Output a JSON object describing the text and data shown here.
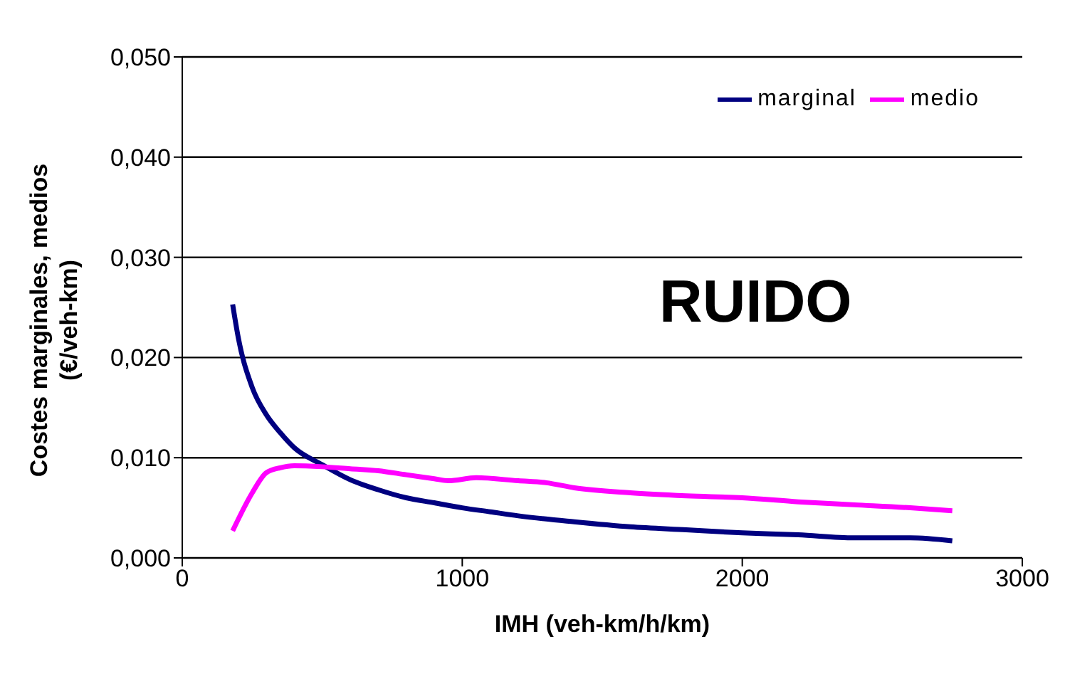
{
  "chart_data": {
    "type": "line",
    "xlabel": "IMH (veh-km/h/km)",
    "ylabel": "Costes marginales, medios\n(€/veh-km)",
    "annotations": [
      "RUIDO"
    ],
    "xlim": [
      0,
      3000
    ],
    "xticks": [
      0,
      1000,
      2000,
      3000
    ],
    "ylim": [
      0,
      0.05
    ],
    "yticks": [
      {
        "value": 0,
        "label": "0,000"
      },
      {
        "value": 0.01,
        "label": "0,010"
      },
      {
        "value": 0.02,
        "label": "0,020"
      },
      {
        "value": 0.03,
        "label": "0,030"
      },
      {
        "value": 0.04,
        "label": "0,040"
      },
      {
        "value": 0.05,
        "label": "0,050"
      }
    ],
    "grid": "y",
    "legend": "top right",
    "marker": "none",
    "line_style": "solid",
    "series": [
      {
        "name": "marginal",
        "color": "#000080",
        "x": [
          180,
          200,
          250,
          300,
          350,
          400,
          500,
          600,
          700,
          800,
          900,
          1000,
          1100,
          1200,
          1400,
          1600,
          1800,
          2000,
          2200,
          2400,
          2600,
          2750
        ],
        "values": [
          0.0253,
          0.022,
          0.017,
          0.0143,
          0.0125,
          0.011,
          0.0093,
          0.0078,
          0.0068,
          0.006,
          0.0055,
          0.005,
          0.0046,
          0.0042,
          0.0036,
          0.0031,
          0.0028,
          0.0025,
          0.0023,
          0.002,
          0.002,
          0.0017
        ]
      },
      {
        "name": "medio",
        "color": "#ff00ff",
        "x": [
          180,
          250,
          300,
          350,
          400,
          500,
          600,
          700,
          800,
          900,
          950,
          1050,
          1200,
          1300,
          1400,
          1600,
          1800,
          2000,
          2200,
          2400,
          2600,
          2750
        ],
        "values": [
          0.0027,
          0.0065,
          0.0085,
          0.009,
          0.0092,
          0.0091,
          0.0089,
          0.0087,
          0.0083,
          0.0079,
          0.0077,
          0.008,
          0.0077,
          0.0075,
          0.007,
          0.0065,
          0.0062,
          0.006,
          0.0056,
          0.0053,
          0.005,
          0.0047
        ]
      }
    ]
  }
}
